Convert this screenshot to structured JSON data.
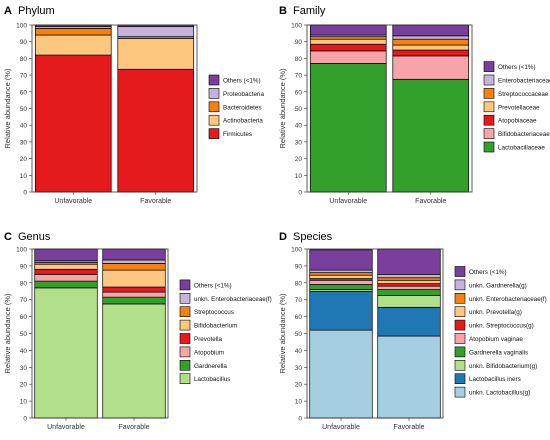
{
  "chart_data": [
    {
      "type": "bar",
      "stacked": true,
      "letter": "A",
      "title": "Phylum",
      "ylabel": "Relative abundance (%)",
      "ylim": [
        0,
        100
      ],
      "yticks": [
        0,
        10,
        20,
        30,
        40,
        50,
        60,
        70,
        80,
        90,
        100
      ],
      "categories": [
        "Unfavorable",
        "Favorable"
      ],
      "series": [
        {
          "name": "Firmicutes",
          "color": "#e41a1c",
          "values": [
            82,
            73.5
          ]
        },
        {
          "name": "Actinobacteria",
          "color": "#fdc77f",
          "values": [
            12,
            18.5
          ]
        },
        {
          "name": "Bacteroidetes",
          "color": "#f5820f",
          "values": [
            4,
            1
          ]
        },
        {
          "name": "Proteobacteria",
          "color": "#c5b3da",
          "values": [
            1,
            6
          ]
        },
        {
          "name": "Others (<1%)",
          "color": "#7a3f9d",
          "values": [
            1,
            1
          ]
        }
      ]
    },
    {
      "type": "bar",
      "stacked": true,
      "letter": "B",
      "title": "Family",
      "ylabel": "Relative abundance (%)",
      "ylim": [
        0,
        100
      ],
      "yticks": [
        0,
        10,
        20,
        30,
        40,
        50,
        60,
        70,
        80,
        90,
        100
      ],
      "categories": [
        "Unfavorable",
        "Favorable"
      ],
      "series": [
        {
          "name": "Lactobacillaceae",
          "color": "#33a02c",
          "values": [
            77,
            67.5
          ]
        },
        {
          "name": "Bifidobacteriaceae",
          "color": "#f8a3a8",
          "values": [
            7.5,
            14
          ]
        },
        {
          "name": "Atopobiaceae",
          "color": "#e41a1c",
          "values": [
            4,
            3.5
          ]
        },
        {
          "name": "Prevotellaceae",
          "color": "#fdc77f",
          "values": [
            3,
            3
          ]
        },
        {
          "name": "Streptococcaceae",
          "color": "#f5820f",
          "values": [
            1.5,
            3.5
          ]
        },
        {
          "name": "Enterobacteriaceae",
          "color": "#c5b3da",
          "values": [
            1,
            2
          ]
        },
        {
          "name": "Others (<1%)",
          "color": "#7a3f9d",
          "values": [
            6,
            6.5
          ]
        }
      ]
    },
    {
      "type": "bar",
      "stacked": true,
      "letter": "C",
      "title": "Genus",
      "ylabel": "Relative abundance (%)",
      "ylim": [
        0,
        100
      ],
      "yticks": [
        0,
        10,
        20,
        30,
        40,
        50,
        60,
        70,
        80,
        90,
        100
      ],
      "categories": [
        "Unfavorable",
        "Favorable"
      ],
      "series": [
        {
          "name": "Lactobacillus",
          "color": "#b2df8a",
          "values": [
            77,
            67.5
          ]
        },
        {
          "name": "Gardnerella",
          "color": "#33a02c",
          "values": [
            4,
            4
          ]
        },
        {
          "name": "Atopobium",
          "color": "#f8a3a8",
          "values": [
            4,
            3
          ]
        },
        {
          "name": "Prevotella",
          "color": "#e41a1c",
          "values": [
            3,
            3
          ]
        },
        {
          "name": "Bifidobacterium",
          "color": "#fdc77f",
          "values": [
            3,
            10
          ]
        },
        {
          "name": "Streptococcus",
          "color": "#f5820f",
          "values": [
            1,
            4
          ]
        },
        {
          "name": "unkn. Enterobacteriaceae(f)",
          "color": "#c5b3da",
          "values": [
            1,
            2
          ]
        },
        {
          "name": "Others (<1%)",
          "color": "#7a3f9d",
          "values": [
            7,
            6.5
          ]
        }
      ]
    },
    {
      "type": "bar",
      "stacked": true,
      "letter": "D",
      "title": "Species",
      "ylabel": "Relative abundance (%)",
      "ylim": [
        0,
        100
      ],
      "yticks": [
        0,
        10,
        20,
        30,
        40,
        50,
        60,
        70,
        80,
        90,
        100
      ],
      "categories": [
        "Unfavorable",
        "Favorable"
      ],
      "series": [
        {
          "name": "unkn. Lactobacillus(g)",
          "color": "#a6cee3",
          "values": [
            52,
            48.5
          ]
        },
        {
          "name": "Lactobacillus iners",
          "color": "#1f78b4",
          "values": [
            23,
            17
          ]
        },
        {
          "name": "unkn. Bifidobacterium(g)",
          "color": "#b2df8a",
          "values": [
            1,
            7
          ]
        },
        {
          "name": "Gardnerella vaginalis",
          "color": "#33a02c",
          "values": [
            3,
            3.5
          ]
        },
        {
          "name": "Atopobium vaginae",
          "color": "#f8a3a8",
          "values": [
            2.5,
            2
          ]
        },
        {
          "name": "unkn. Streptococcus(g)",
          "color": "#e41a1c",
          "values": [
            1,
            1.5
          ]
        },
        {
          "name": "unkn. Prevotella(g)",
          "color": "#fdc77f",
          "values": [
            2,
            2
          ]
        },
        {
          "name": "unkn. Enterobacteriaceae(f)",
          "color": "#f5820f",
          "values": [
            1.5,
            1.5
          ]
        },
        {
          "name": "unkn. Gardnerella(g)",
          "color": "#c5b3da",
          "values": [
            1.5,
            2
          ]
        },
        {
          "name": "Others (<1%)",
          "color": "#7a3f9d",
          "values": [
            12,
            15
          ]
        }
      ]
    }
  ]
}
